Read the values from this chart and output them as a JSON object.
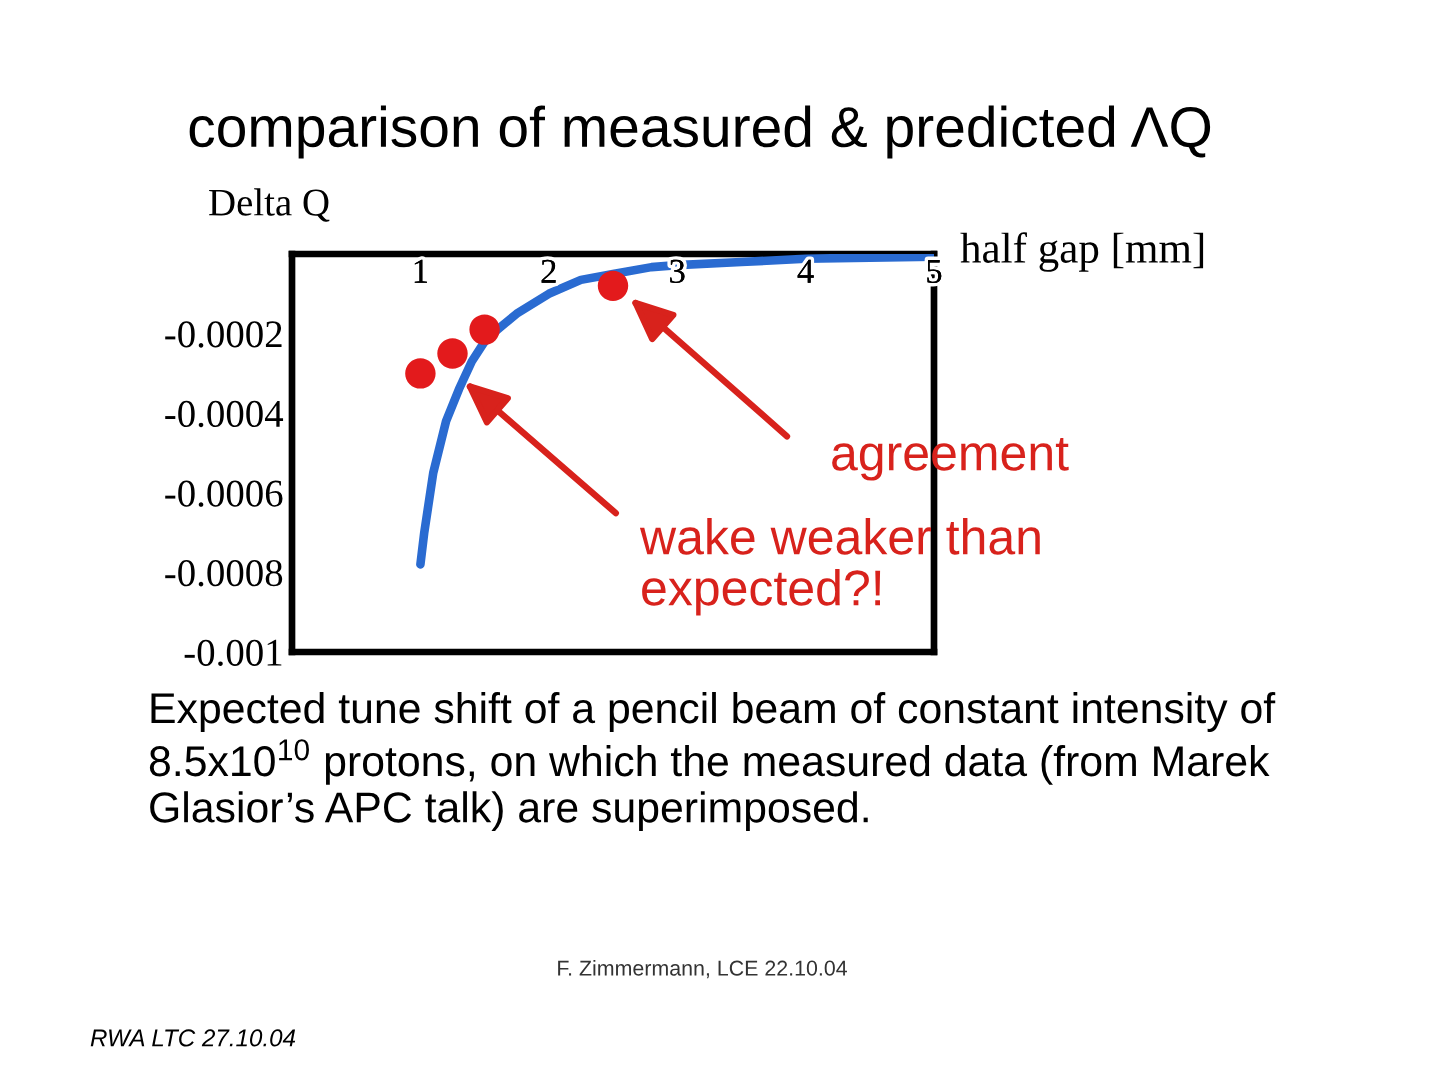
{
  "chart_data": {
    "type": "line",
    "title": "comparison of measured & predicted ΛQ",
    "xlabel": "half gap [mm]",
    "ylabel": "Delta Q",
    "xlim": [
      0,
      5
    ],
    "ylim": [
      -0.001,
      0
    ],
    "xticks": [
      1,
      2,
      3,
      4,
      5
    ],
    "yticks": [
      -0.0002,
      -0.0004,
      -0.0006,
      -0.0008,
      -0.001
    ],
    "grid": false,
    "series": [
      {
        "color": "#2a6bd1",
        "marker": "none",
        "line_style": "solid",
        "x": [
          1.0,
          1.03,
          1.1,
          1.2,
          1.3,
          1.4,
          1.5,
          1.6,
          1.75,
          2.0,
          2.25,
          2.5,
          2.8,
          3.0,
          3.5,
          4.0,
          4.5,
          5.0
        ],
        "values": [
          -0.00078,
          -0.0007,
          -0.00055,
          -0.00042,
          -0.00034,
          -0.00027,
          -0.00022,
          -0.00019,
          -0.00015,
          -0.0001,
          -6.5e-05,
          -5e-05,
          -3.3e-05,
          -2.8e-05,
          -2e-05,
          -1.2e-05,
          -9e-06,
          -7e-06
        ]
      },
      {
        "type": "scatter",
        "color": "#e31a1c",
        "marker": "circle",
        "x": [
          1.0,
          1.25,
          1.5,
          2.5
        ],
        "values": [
          -0.0003,
          -0.00025,
          -0.00019,
          -8e-05
        ]
      }
    ],
    "annotations": [
      {
        "text": "agreement",
        "x": 2.63,
        "y": -0.00011
      },
      {
        "text": "wake weaker than expected?!",
        "x": 1.34,
        "y": -0.00032
      },
      "Expected tune shift of a pencil beam of constant intensity of 8.5x10$^{10}$ protons, on which the measured data (from Marek Glasior’s APC talk) are superimposed.",
      "F. Zimmermann, LCE 22.10.04",
      "RWA LTC 27.10.04"
    ]
  }
}
